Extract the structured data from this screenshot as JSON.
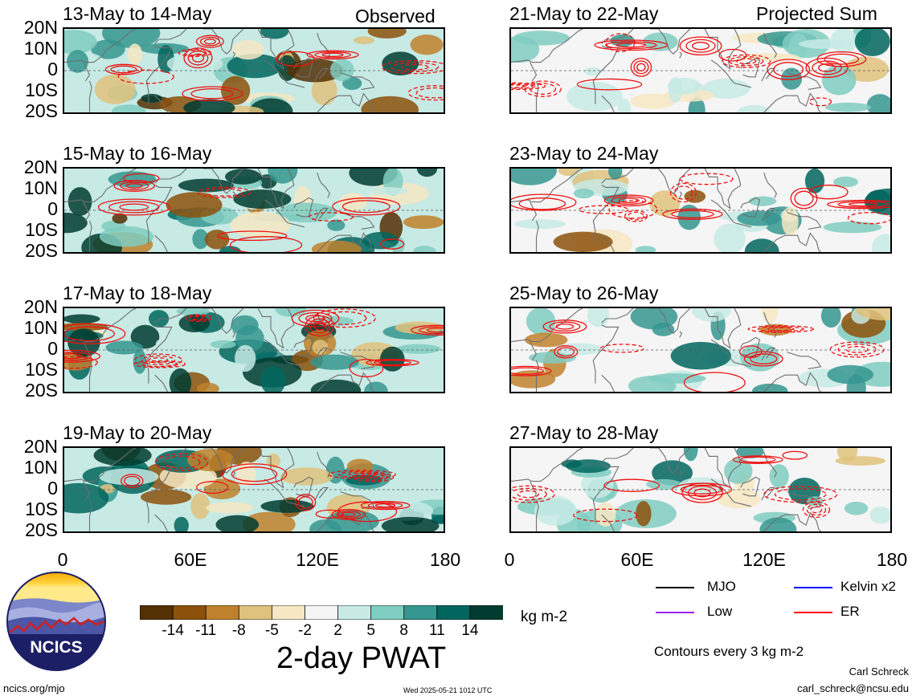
{
  "headers": {
    "left": "Observed",
    "right": "Projected Sum"
  },
  "panels": [
    {
      "title": "13-May to 14-May",
      "column": "observed"
    },
    {
      "title": "15-May to 16-May",
      "column": "observed"
    },
    {
      "title": "17-May to 18-May",
      "column": "observed"
    },
    {
      "title": "19-May to 20-May",
      "column": "observed"
    },
    {
      "title": "21-May to 22-May",
      "column": "projected"
    },
    {
      "title": "23-May to 24-May",
      "column": "projected"
    },
    {
      "title": "25-May to 26-May",
      "column": "projected"
    },
    {
      "title": "27-May to 28-May",
      "column": "projected"
    }
  ],
  "y_ticks": [
    "20N",
    "10N",
    "0",
    "10S",
    "20S"
  ],
  "x_ticks": [
    "0",
    "60E",
    "120E",
    "180"
  ],
  "colorbar": {
    "labels": [
      "-14",
      "-11",
      "-8",
      "-5",
      "-2",
      "2",
      "5",
      "8",
      "11",
      "14"
    ],
    "colors": [
      "#543005",
      "#8c510a",
      "#bf812d",
      "#dfc27d",
      "#f6e8c3",
      "#f5f5f5",
      "#c7eae5",
      "#80cdc1",
      "#35978f",
      "#01665e",
      "#003c30"
    ],
    "units": "kg m-2"
  },
  "product_title": "2-day PWAT",
  "legend": {
    "items": [
      {
        "label": "MJO",
        "color": "#000000"
      },
      {
        "label": "Kelvin x2",
        "color": "#0000ff"
      },
      {
        "label": "Low",
        "color": "#a020f0"
      },
      {
        "label": "ER",
        "color": "#ff0000"
      }
    ],
    "note": "Contours every 3 kg m-2"
  },
  "logo": {
    "text": "NCICS"
  },
  "footer": {
    "url": "ncics.org/mjo",
    "timestamp": "Wed 2025-05-21 1012 UTC",
    "author": "Carl Schreck",
    "email": "carl_schreck@ncsu.edu"
  }
}
